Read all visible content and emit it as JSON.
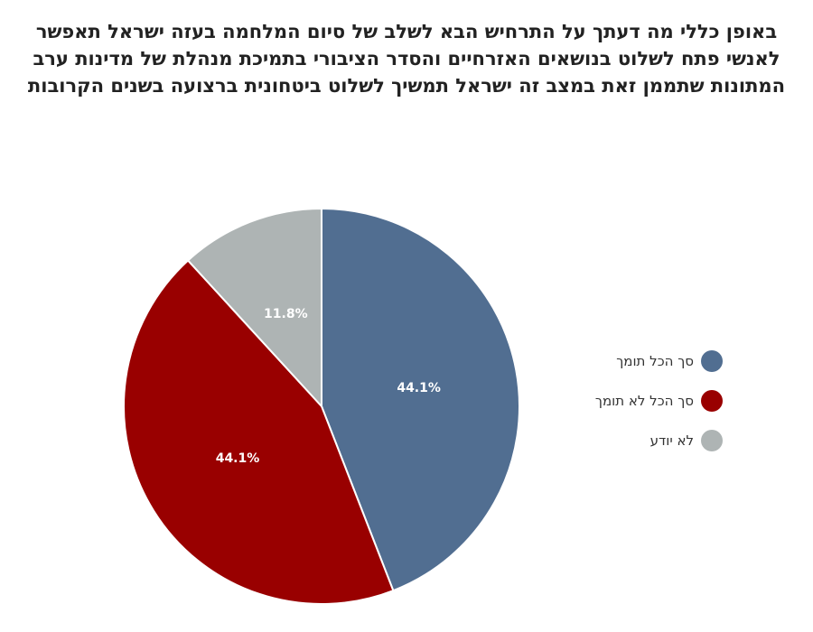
{
  "chart_data": {
    "type": "pie",
    "title": "באופן כללי מה דעתך על התרחיש הבא לשלב של סיום המלחמה בעזה ישראל תאפשר לאנשי פתח לשלוט בנושאים האזרחיים והסדר הציבורי בתמיכת מנהלת של מדינות ערב המתונות שתממן זאת במצב זה ישראל תמשיך לשלוט ביטחונית ברצועה בשנים הקרובות",
    "categories": [
      "סך הכל תומך",
      "סך הכל לא תומך",
      "לא יודע"
    ],
    "values": [
      44.1,
      44.1,
      11.8
    ],
    "labels": [
      "44.1%",
      "44.1%",
      "11.8%"
    ],
    "colors": [
      "#516e91",
      "#990000",
      "#aeb4b4"
    ],
    "legend_position": "right"
  }
}
